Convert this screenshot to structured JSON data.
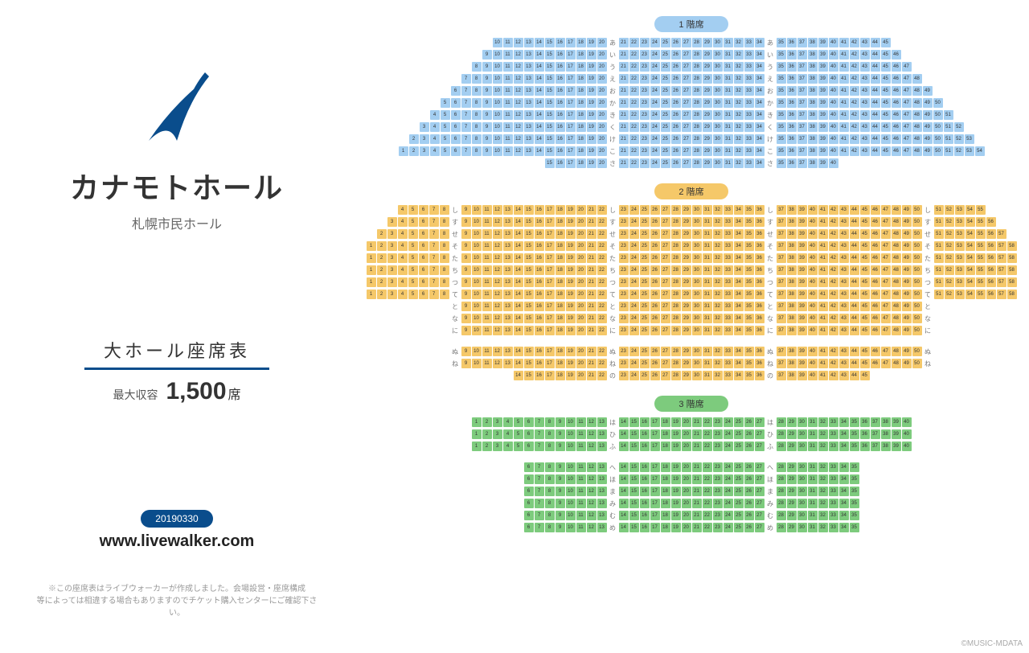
{
  "venue_name": "カナモトホール",
  "venue_subtitle": "札幌市民ホール",
  "hall_title": "大ホール座席表",
  "capacity_label": "最大収容",
  "capacity_num": "1,500",
  "capacity_unit": "席",
  "date_badge": "20190330",
  "url": "www.livewalker.com",
  "disclaimer1": "※この座席表はライブウォーカーが作成しました。会場設営・座席構成",
  "disclaimer2": "等によっては相違する場合もありますのでチケット購入センターにご確認下さい。",
  "copyright": "©MUSIC-MDATA",
  "logo_color": "#0a4d8c",
  "floors": [
    {
      "id": "f1",
      "label": "1 階席",
      "color": "#a3cef1",
      "row_labels": [
        "あ",
        "い",
        "う",
        "え",
        "お",
        "か",
        "き",
        "く",
        "け",
        "こ",
        "さ"
      ],
      "rows": [
        {
          "left": [
            10,
            20
          ],
          "center": [
            21,
            34
          ],
          "right": [
            35,
            45
          ],
          "label_pos": "inner"
        },
        {
          "left": [
            9,
            20
          ],
          "center": [
            21,
            34
          ],
          "right": [
            35,
            46
          ],
          "label_pos": "inner"
        },
        {
          "left": [
            8,
            20
          ],
          "center": [
            21,
            34
          ],
          "right": [
            35,
            47
          ],
          "label_pos": "inner"
        },
        {
          "left": [
            7,
            20
          ],
          "center": [
            21,
            34
          ],
          "right": [
            35,
            48
          ],
          "label_pos": "inner"
        },
        {
          "left": [
            6,
            20
          ],
          "center": [
            21,
            34
          ],
          "right": [
            35,
            49
          ],
          "label_pos": "inner"
        },
        {
          "left": [
            5,
            20
          ],
          "center": [
            21,
            34
          ],
          "right": [
            35,
            50
          ],
          "label_pos": "inner"
        },
        {
          "left": [
            4,
            20
          ],
          "center": [
            21,
            34
          ],
          "right": [
            35,
            51
          ],
          "label_pos": "inner"
        },
        {
          "left": [
            3,
            20
          ],
          "center": [
            21,
            34
          ],
          "right": [
            35,
            52
          ],
          "label_pos": "inner"
        },
        {
          "left": [
            2,
            20
          ],
          "center": [
            21,
            34
          ],
          "right": [
            35,
            53
          ],
          "label_pos": "inner"
        },
        {
          "left": [
            1,
            20
          ],
          "center": [
            21,
            34
          ],
          "right": [
            35,
            54
          ],
          "label_pos": "inner"
        },
        {
          "left": [
            15,
            20
          ],
          "center": [
            21,
            34
          ],
          "right": [
            35,
            40
          ],
          "label_pos": "inner"
        }
      ]
    },
    {
      "id": "f2",
      "label": "2 階席",
      "color": "#f5c869",
      "row_labels": [
        "し",
        "す",
        "せ",
        "そ",
        "た",
        "ち",
        "つ",
        "て",
        "と",
        "な",
        "に",
        "",
        "ぬ",
        "ね",
        "の"
      ],
      "rows": [
        {
          "farleft": [
            4,
            8
          ],
          "left": [
            9,
            22
          ],
          "center": [
            23,
            36
          ],
          "right": [
            37,
            50
          ],
          "farright": [
            51,
            55
          ],
          "label_pos": "triple"
        },
        {
          "farleft": [
            3,
            8
          ],
          "left": [
            9,
            22
          ],
          "center": [
            23,
            36
          ],
          "right": [
            37,
            50
          ],
          "farright": [
            51,
            56
          ],
          "label_pos": "triple"
        },
        {
          "farleft": [
            2,
            8
          ],
          "left": [
            9,
            22
          ],
          "center": [
            23,
            36
          ],
          "right": [
            37,
            50
          ],
          "farright": [
            51,
            57
          ],
          "label_pos": "triple"
        },
        {
          "farleft": [
            1,
            8
          ],
          "left": [
            9,
            22
          ],
          "center": [
            23,
            36
          ],
          "right": [
            37,
            50
          ],
          "farright": [
            51,
            58
          ],
          "label_pos": "triple"
        },
        {
          "farleft": [
            1,
            8
          ],
          "left": [
            9,
            22
          ],
          "center": [
            23,
            36
          ],
          "right": [
            37,
            50
          ],
          "farright": [
            51,
            58
          ],
          "label_pos": "triple"
        },
        {
          "farleft": [
            1,
            8
          ],
          "left": [
            9,
            22
          ],
          "center": [
            23,
            36
          ],
          "right": [
            37,
            50
          ],
          "farright": [
            51,
            58
          ],
          "label_pos": "triple"
        },
        {
          "farleft": [
            1,
            8
          ],
          "left": [
            9,
            22
          ],
          "center": [
            23,
            36
          ],
          "right": [
            37,
            50
          ],
          "farright": [
            51,
            58
          ],
          "label_pos": "triple"
        },
        {
          "farleft": [
            1,
            8
          ],
          "left": [
            9,
            22
          ],
          "center": [
            23,
            36
          ],
          "right": [
            37,
            50
          ],
          "farright": [
            51,
            58
          ],
          "label_pos": "triple"
        },
        {
          "left": [
            9,
            22
          ],
          "center": [
            23,
            36
          ],
          "right": [
            37,
            50
          ],
          "label_pos": "both"
        },
        {
          "left": [
            9,
            22
          ],
          "center": [
            23,
            36
          ],
          "right": [
            37,
            50
          ],
          "label_pos": "both"
        },
        {
          "left": [
            9,
            22
          ],
          "center": [
            23,
            36
          ],
          "right": [
            37,
            50
          ],
          "label_pos": "both"
        },
        {
          "blank": true
        },
        {
          "left": [
            9,
            22
          ],
          "center": [
            23,
            36
          ],
          "right": [
            37,
            50
          ],
          "label_pos": "both"
        },
        {
          "left": [
            9,
            22
          ],
          "center": [
            23,
            36
          ],
          "right": [
            37,
            50
          ],
          "label_pos": "both"
        },
        {
          "left": [
            14,
            22
          ],
          "center": [
            23,
            36
          ],
          "right": [
            37,
            45
          ],
          "label_pos": "inner"
        }
      ]
    },
    {
      "id": "f3",
      "label": "3 階席",
      "color": "#7dcb7d",
      "row_labels": [
        "は",
        "ひ",
        "ふ",
        "",
        "へ",
        "ほ",
        "ま",
        "み",
        "む",
        "め"
      ],
      "rows": [
        {
          "left": [
            1,
            13
          ],
          "center": [
            14,
            27
          ],
          "right": [
            28,
            40
          ],
          "label_pos": "inner"
        },
        {
          "left": [
            1,
            13
          ],
          "center": [
            14,
            27
          ],
          "right": [
            28,
            40
          ],
          "label_pos": "inner"
        },
        {
          "left": [
            1,
            13
          ],
          "center": [
            14,
            27
          ],
          "right": [
            28,
            40
          ],
          "label_pos": "inner"
        },
        {
          "blank": true
        },
        {
          "left": [
            6,
            13
          ],
          "center": [
            14,
            27
          ],
          "right": [
            28,
            35
          ],
          "label_pos": "inner"
        },
        {
          "left": [
            6,
            13
          ],
          "center": [
            14,
            27
          ],
          "right": [
            28,
            35
          ],
          "label_pos": "inner"
        },
        {
          "left": [
            6,
            13
          ],
          "center": [
            14,
            27
          ],
          "right": [
            28,
            35
          ],
          "label_pos": "inner"
        },
        {
          "left": [
            6,
            13
          ],
          "center": [
            14,
            27
          ],
          "right": [
            28,
            35
          ],
          "label_pos": "inner"
        },
        {
          "left": [
            6,
            13
          ],
          "center": [
            14,
            27
          ],
          "right": [
            28,
            35
          ],
          "label_pos": "inner"
        },
        {
          "left": [
            6,
            13
          ],
          "center": [
            14,
            27
          ],
          "right": [
            28,
            35
          ],
          "label_pos": "inner"
        }
      ]
    }
  ]
}
